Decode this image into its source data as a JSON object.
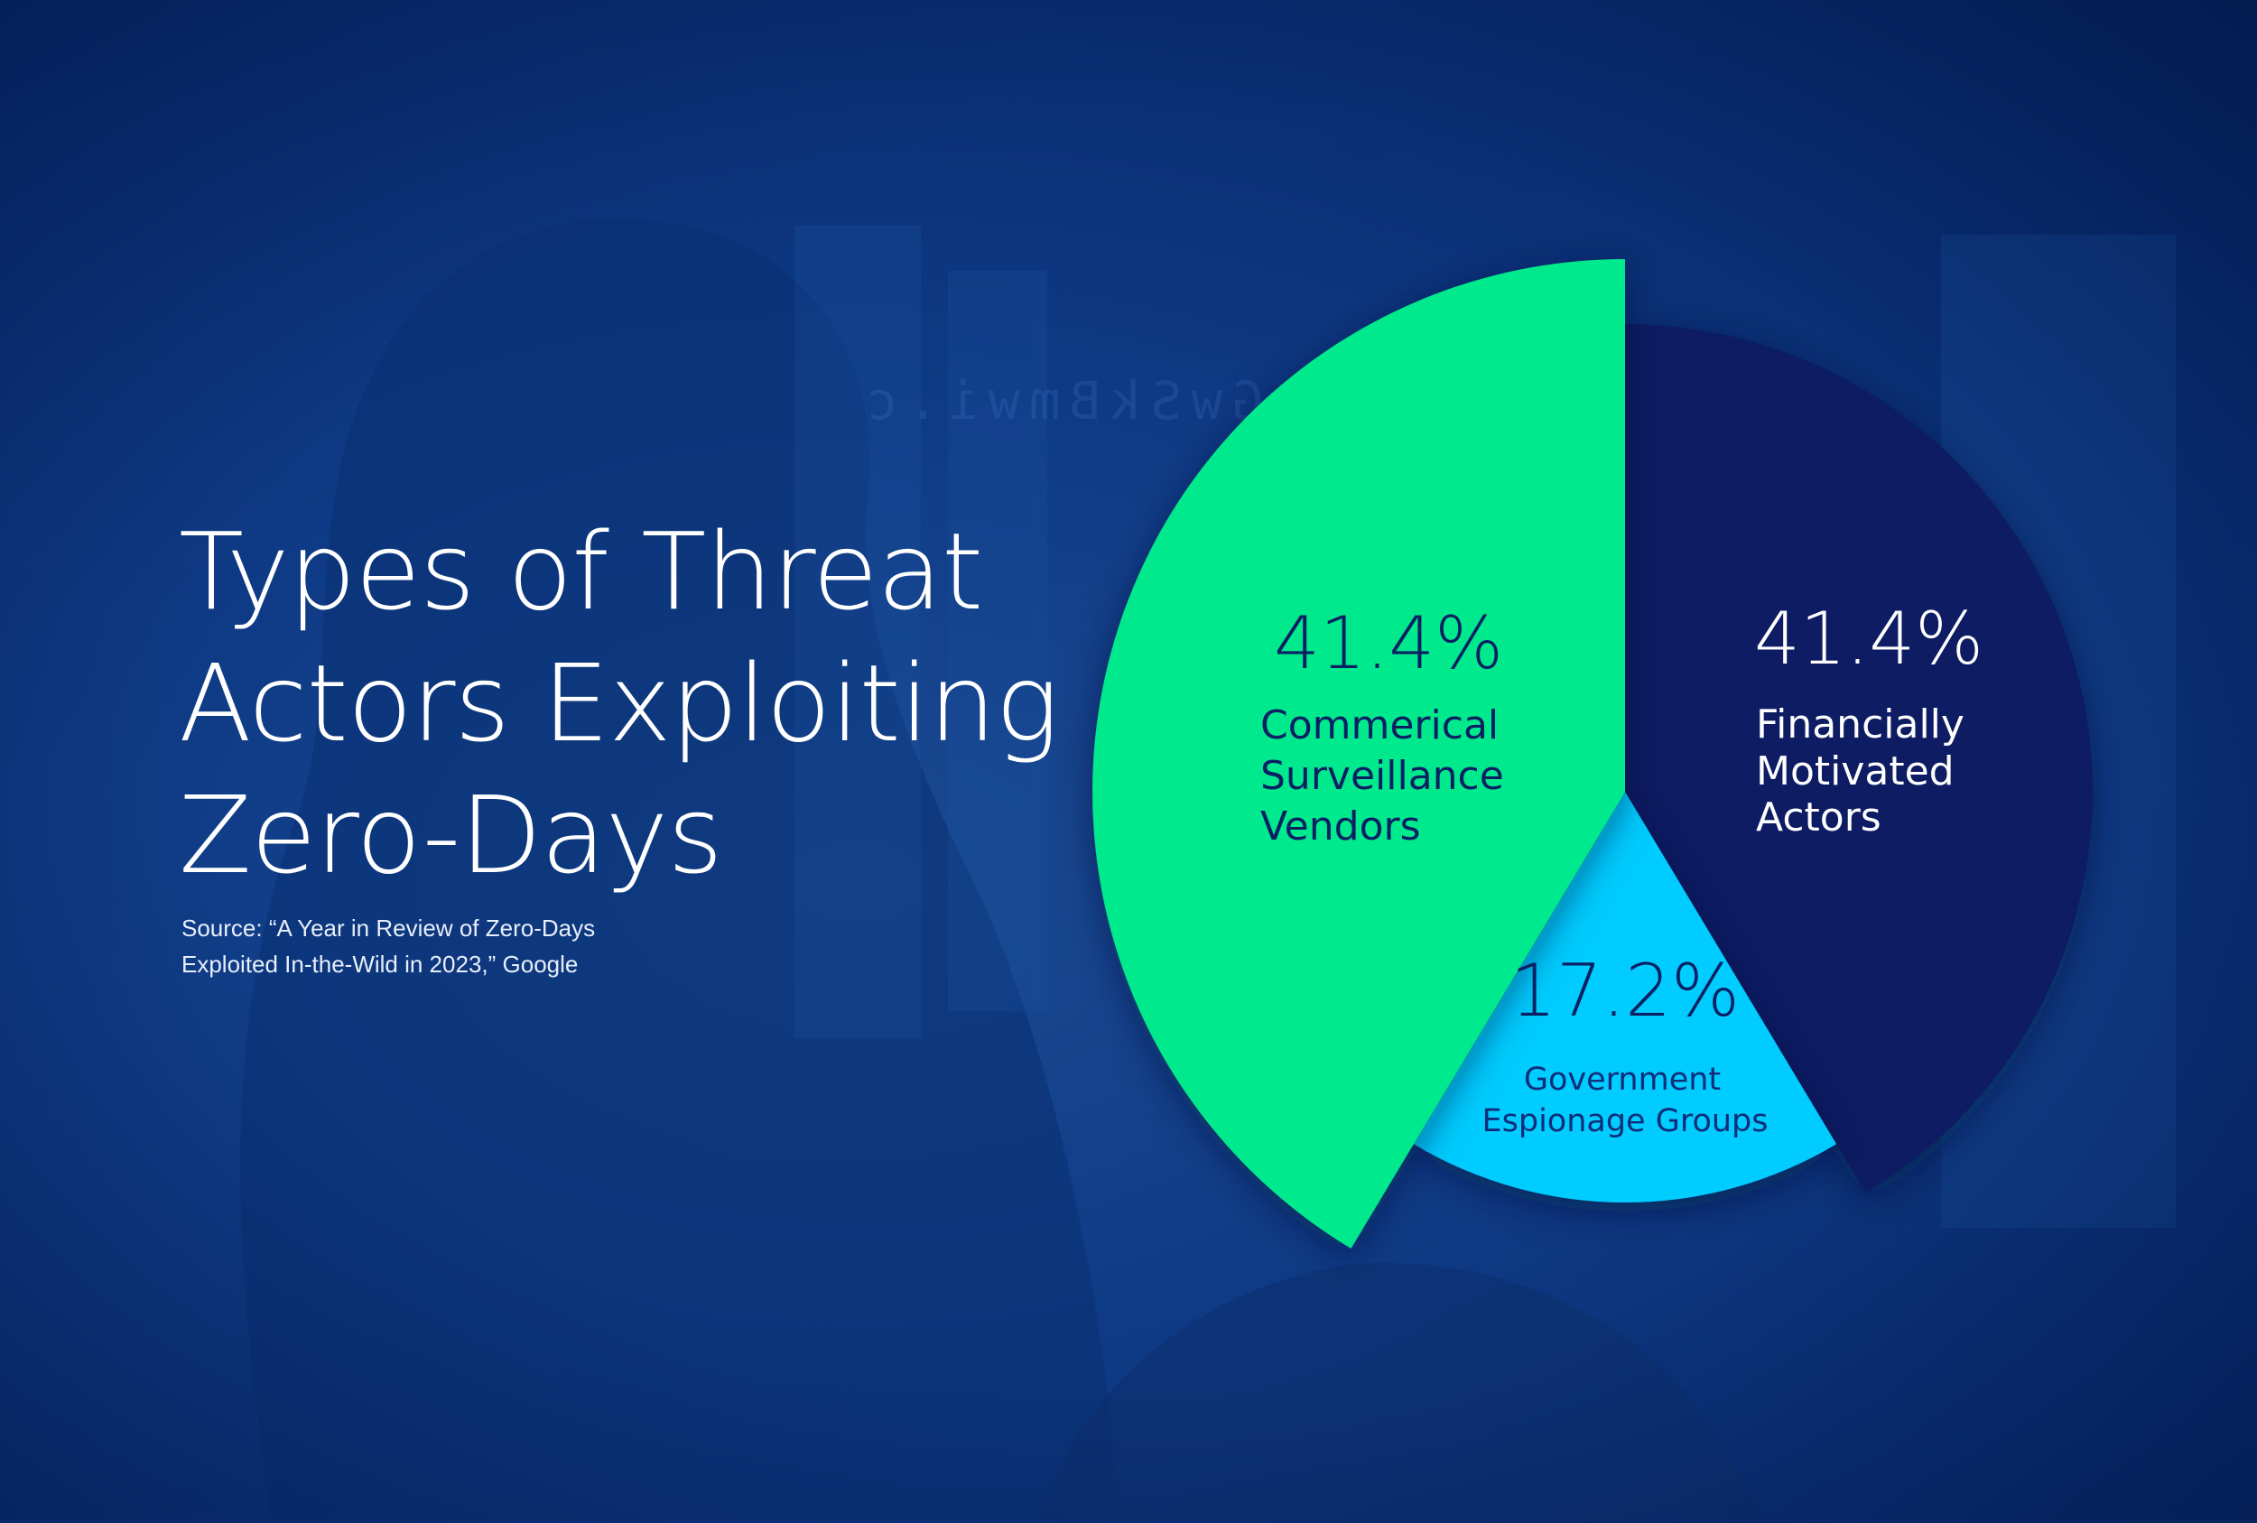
{
  "title_lines": [
    "Types of Threat",
    "Actors Exploiting",
    "Zero-Days"
  ],
  "source_lines": [
    "Source:  “A Year in Review of Zero-Days",
    "Exploited In-the-Wild in 2023,” Google"
  ],
  "background_text": "3czGwSkBmwi.c",
  "colors": {
    "commercial": "#00e98c",
    "financial": "#0b1f63",
    "government": "#00ccff"
  },
  "chart_data": {
    "type": "pie",
    "title": "Types of Threat Actors Exploiting Zero-Days",
    "slices": [
      {
        "label_lines": [
          "Financially",
          "Motivated",
          "Actors"
        ],
        "value": 41.4,
        "display": "41.4%"
      },
      {
        "label_lines": [
          "Government",
          "Espionage Groups"
        ],
        "value": 17.2,
        "display": "17.2%"
      },
      {
        "label_lines": [
          "Commerical",
          "Surveillance",
          "Vendors"
        ],
        "value": 41.4,
        "display": "41.4%"
      }
    ],
    "start_angle_deg": 0,
    "direction": "clockwise"
  }
}
